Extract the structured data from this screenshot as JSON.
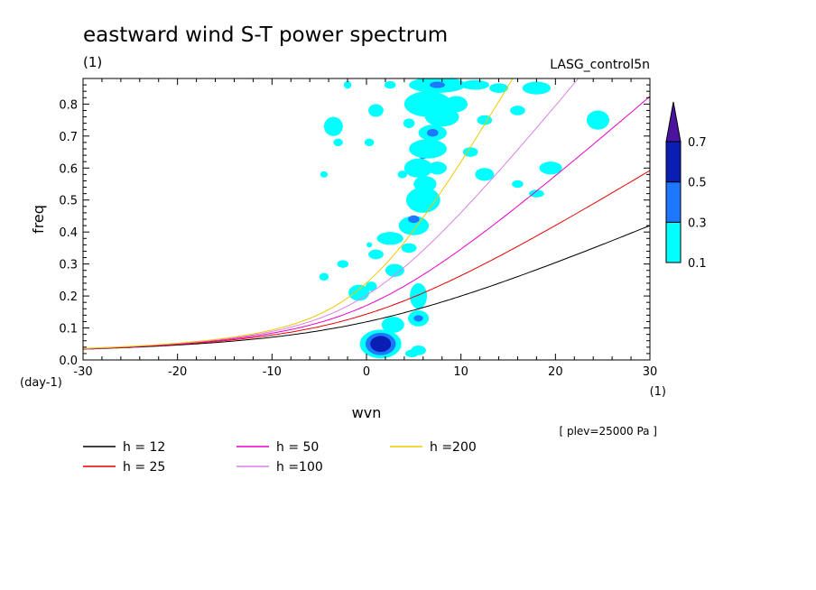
{
  "chart_data": {
    "type": "heatmap",
    "title": "eastward wind S-T power spectrum",
    "subtitle_left": "(1)",
    "subtitle_right": "LASG_control5n",
    "xlabel": "wvn",
    "x_unit": "(1)",
    "ylabel": "freq",
    "y_unit": "(day-1)",
    "annotation": "[ plev=25000 Pa ]",
    "xlim": [
      -30,
      30
    ],
    "ylim": [
      0,
      0.88
    ],
    "x_ticks": [
      -30,
      -20,
      -10,
      0,
      10,
      20,
      30
    ],
    "x_tick_labels": [
      "-30",
      "-20",
      "-10",
      "0",
      "10",
      "20",
      "30"
    ],
    "y_ticks": [
      0,
      0.1,
      0.2,
      0.3,
      0.4,
      0.5,
      0.6,
      0.7,
      0.8
    ],
    "y_tick_labels": [
      "0.0",
      "0.1",
      "0.2",
      "0.3",
      "0.4",
      "0.5",
      "0.6",
      "0.7",
      "0.8"
    ],
    "colorbar": {
      "levels": [
        0.1,
        0.3,
        0.5,
        0.7
      ],
      "labels": [
        "0.1",
        "0.3",
        "0.5",
        "0.7"
      ],
      "colors": [
        "#00ffff",
        "#1e78ff",
        "#0a1eb4",
        "#4b14a0"
      ]
    },
    "curves": [
      {
        "name": "h = 12",
        "h": 12,
        "color": "#000000"
      },
      {
        "name": "h = 25",
        "h": 25,
        "color": "#e60000"
      },
      {
        "name": "h = 50",
        "h": 50,
        "color": "#e600c8"
      },
      {
        "name": "h =100",
        "h": 100,
        "color": "#dc82e6"
      },
      {
        "name": "h =200",
        "h": 200,
        "color": "#f0c800"
      }
    ],
    "blobs": [
      {
        "x": 1.5,
        "y": 0.05,
        "rx": 2.2,
        "ry": 0.045,
        "level": 1
      },
      {
        "x": 1.5,
        "y": 0.05,
        "rx": 1.6,
        "ry": 0.035,
        "level": 2
      },
      {
        "x": 1.5,
        "y": 0.05,
        "rx": 1.1,
        "ry": 0.025,
        "level": 3
      },
      {
        "x": 2.8,
        "y": 0.11,
        "rx": 1.2,
        "ry": 0.025,
        "level": 1
      },
      {
        "x": 5.5,
        "y": 0.13,
        "rx": 1.1,
        "ry": 0.025,
        "level": 1
      },
      {
        "x": 5.5,
        "y": 0.13,
        "rx": 0.5,
        "ry": 0.01,
        "level": 2
      },
      {
        "x": 5.5,
        "y": 0.2,
        "rx": 0.9,
        "ry": 0.04,
        "level": 1
      },
      {
        "x": 5.5,
        "y": 0.03,
        "rx": 0.8,
        "ry": 0.015,
        "level": 1
      },
      {
        "x": -0.8,
        "y": 0.21,
        "rx": 1.1,
        "ry": 0.025,
        "level": 1
      },
      {
        "x": 0.5,
        "y": 0.23,
        "rx": 0.6,
        "ry": 0.015,
        "level": 1
      },
      {
        "x": 3.0,
        "y": 0.28,
        "rx": 1.0,
        "ry": 0.02,
        "level": 1
      },
      {
        "x": -4.5,
        "y": 0.26,
        "rx": 0.5,
        "ry": 0.012,
        "level": 1
      },
      {
        "x": -2.5,
        "y": 0.3,
        "rx": 0.6,
        "ry": 0.012,
        "level": 1
      },
      {
        "x": 1.0,
        "y": 0.33,
        "rx": 0.8,
        "ry": 0.015,
        "level": 1
      },
      {
        "x": 4.5,
        "y": 0.35,
        "rx": 0.8,
        "ry": 0.015,
        "level": 1
      },
      {
        "x": 2.5,
        "y": 0.38,
        "rx": 1.4,
        "ry": 0.02,
        "level": 1
      },
      {
        "x": 5.0,
        "y": 0.42,
        "rx": 1.6,
        "ry": 0.03,
        "level": 1
      },
      {
        "x": 5.0,
        "y": 0.44,
        "rx": 0.6,
        "ry": 0.012,
        "level": 2
      },
      {
        "x": 6.0,
        "y": 0.5,
        "rx": 1.8,
        "ry": 0.04,
        "level": 1
      },
      {
        "x": 6.2,
        "y": 0.55,
        "rx": 1.2,
        "ry": 0.025,
        "level": 1
      },
      {
        "x": 5.5,
        "y": 0.6,
        "rx": 1.5,
        "ry": 0.03,
        "level": 1
      },
      {
        "x": 6.0,
        "y": 0.64,
        "rx": 0.5,
        "ry": 0.012,
        "level": 2
      },
      {
        "x": 7.5,
        "y": 0.6,
        "rx": 1.0,
        "ry": 0.02,
        "level": 1
      },
      {
        "x": 6.5,
        "y": 0.66,
        "rx": 2.0,
        "ry": 0.03,
        "level": 1
      },
      {
        "x": 7.0,
        "y": 0.71,
        "rx": 1.5,
        "ry": 0.025,
        "level": 1
      },
      {
        "x": 7.0,
        "y": 0.71,
        "rx": 0.6,
        "ry": 0.012,
        "level": 2
      },
      {
        "x": 8.0,
        "y": 0.76,
        "rx": 1.8,
        "ry": 0.03,
        "level": 1
      },
      {
        "x": 6.5,
        "y": 0.8,
        "rx": 2.5,
        "ry": 0.04,
        "level": 1
      },
      {
        "x": 9.5,
        "y": 0.8,
        "rx": 1.2,
        "ry": 0.025,
        "level": 1
      },
      {
        "x": 7.5,
        "y": 0.86,
        "rx": 3.0,
        "ry": 0.025,
        "level": 1
      },
      {
        "x": 7.5,
        "y": 0.86,
        "rx": 0.8,
        "ry": 0.01,
        "level": 2
      },
      {
        "x": 11.5,
        "y": 0.86,
        "rx": 1.5,
        "ry": 0.015,
        "level": 1
      },
      {
        "x": 14.0,
        "y": 0.85,
        "rx": 1.0,
        "ry": 0.015,
        "level": 1
      },
      {
        "x": 18.0,
        "y": 0.85,
        "rx": 1.5,
        "ry": 0.02,
        "level": 1
      },
      {
        "x": 16.0,
        "y": 0.78,
        "rx": 0.8,
        "ry": 0.015,
        "level": 1
      },
      {
        "x": 12.5,
        "y": 0.75,
        "rx": 0.8,
        "ry": 0.015,
        "level": 1
      },
      {
        "x": 11.0,
        "y": 0.65,
        "rx": 0.8,
        "ry": 0.015,
        "level": 1
      },
      {
        "x": 12.5,
        "y": 0.58,
        "rx": 1.0,
        "ry": 0.02,
        "level": 1
      },
      {
        "x": 19.5,
        "y": 0.6,
        "rx": 1.2,
        "ry": 0.02,
        "level": 1
      },
      {
        "x": 24.5,
        "y": 0.75,
        "rx": 1.2,
        "ry": 0.03,
        "level": 1
      },
      {
        "x": 16.0,
        "y": 0.55,
        "rx": 0.6,
        "ry": 0.012,
        "level": 1
      },
      {
        "x": 18.0,
        "y": 0.52,
        "rx": 0.8,
        "ry": 0.012,
        "level": 1
      },
      {
        "x": -3.5,
        "y": 0.73,
        "rx": 1.0,
        "ry": 0.03,
        "level": 1
      },
      {
        "x": -3.0,
        "y": 0.68,
        "rx": 0.5,
        "ry": 0.012,
        "level": 1
      },
      {
        "x": 1.0,
        "y": 0.78,
        "rx": 0.8,
        "ry": 0.02,
        "level": 1
      },
      {
        "x": 0.3,
        "y": 0.68,
        "rx": 0.5,
        "ry": 0.012,
        "level": 1
      },
      {
        "x": -2.0,
        "y": 0.86,
        "rx": 0.4,
        "ry": 0.012,
        "level": 1
      },
      {
        "x": 2.5,
        "y": 0.86,
        "rx": 0.6,
        "ry": 0.012,
        "level": 1
      },
      {
        "x": 4.5,
        "y": 0.74,
        "rx": 0.6,
        "ry": 0.015,
        "level": 1
      },
      {
        "x": 3.8,
        "y": 0.58,
        "rx": 0.5,
        "ry": 0.012,
        "level": 1
      },
      {
        "x": -4.5,
        "y": 0.58,
        "rx": 0.4,
        "ry": 0.01,
        "level": 1
      },
      {
        "x": 0.3,
        "y": 0.36,
        "rx": 0.3,
        "ry": 0.008,
        "level": 1
      },
      {
        "x": 4.8,
        "y": 0.02,
        "rx": 0.7,
        "ry": 0.012,
        "level": 1
      }
    ]
  }
}
